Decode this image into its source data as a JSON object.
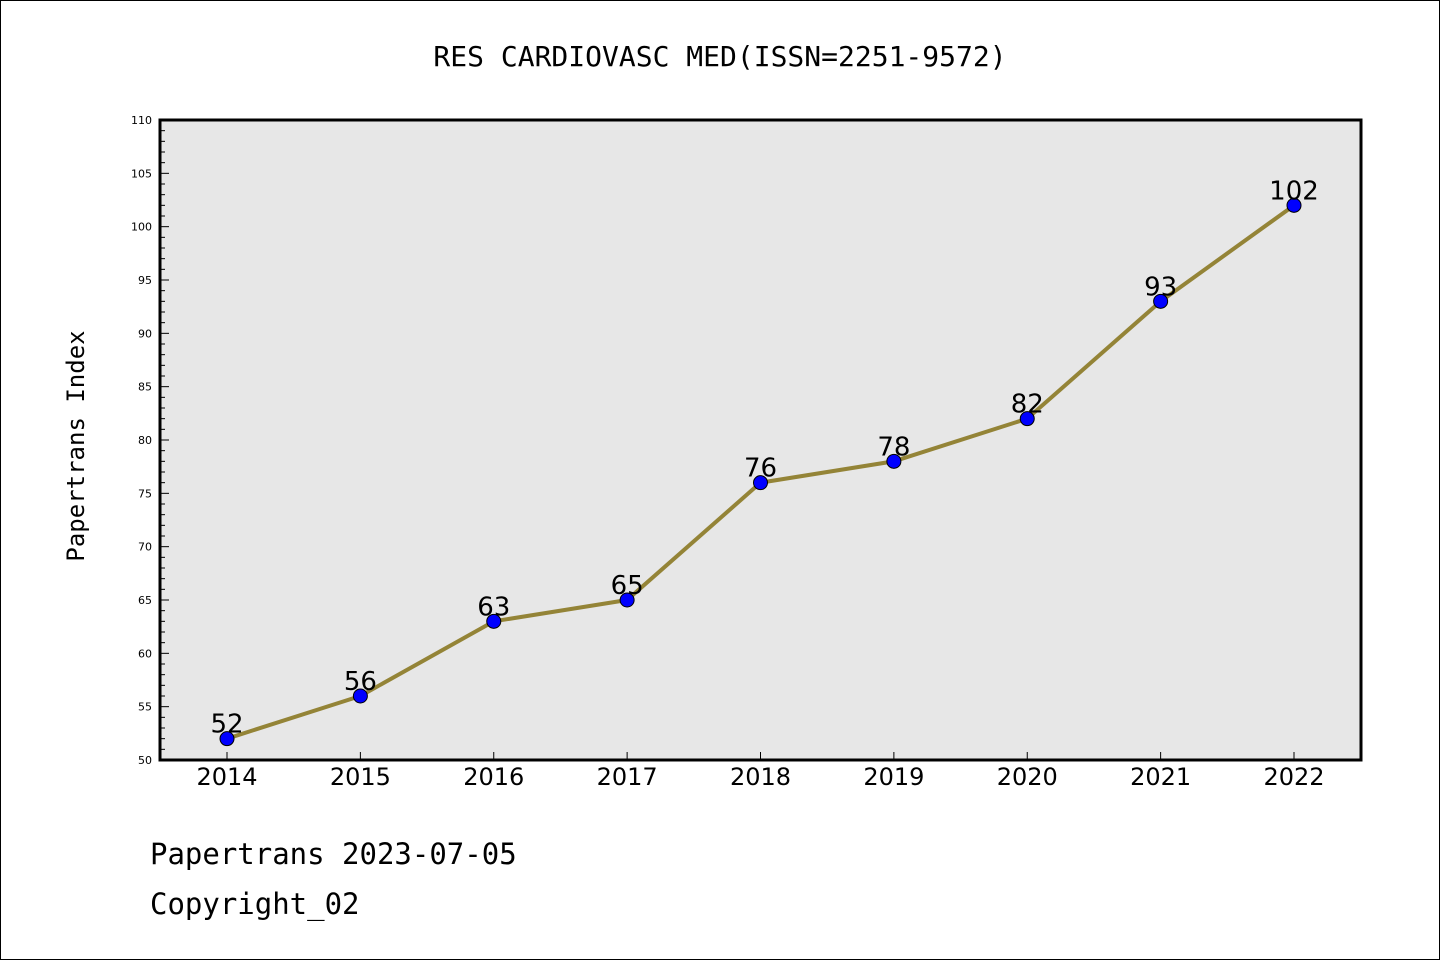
{
  "footer": {
    "line1": "Papertrans 2023-07-05",
    "line2": "Copyright_02"
  },
  "chart_data": {
    "type": "line",
    "title": "RES CARDIOVASC MED(ISSN=2251-9572)",
    "xlabel": "",
    "ylabel": "Papertrans Index",
    "categories": [
      "2014",
      "2015",
      "2016",
      "2017",
      "2018",
      "2019",
      "2020",
      "2021",
      "2022"
    ],
    "series": [
      {
        "values": [
          52,
          56,
          63,
          65,
          76,
          78,
          82,
          93,
          102
        ]
      }
    ],
    "data_labels": [
      "52",
      "56",
      "63",
      "65",
      "76",
      "78",
      "82",
      "93",
      "102"
    ],
    "ylim": [
      50,
      110
    ],
    "yticks": [
      "50",
      "55",
      "60",
      "65",
      "70",
      "75",
      "80",
      "85",
      "90",
      "95",
      "100",
      "105",
      "110"
    ],
    "grid": false,
    "legend": "none",
    "colors": {
      "line": "#948437",
      "marker": "#0000ff",
      "plot_background": "#e7e7e7"
    }
  }
}
